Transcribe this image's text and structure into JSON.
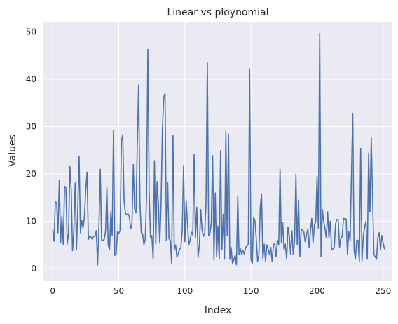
{
  "chart_data": {
    "type": "line",
    "title": "Linear vs ploynomial",
    "xlabel": "Index",
    "ylabel": "Values",
    "xlim": [
      -7,
      257
    ],
    "ylim": [
      -2.5,
      52
    ],
    "xticks": [
      0,
      50,
      100,
      150,
      200,
      250
    ],
    "yticks": [
      0,
      10,
      20,
      30,
      40,
      50
    ],
    "grid": true,
    "background_color": "#eaeaf2",
    "line_color": "#4c72b0",
    "series": [
      {
        "values": [
          8.1,
          5.8,
          14.1,
          14.0,
          7.6,
          18.7,
          5.6,
          11.1,
          5.1,
          17.4,
          17.2,
          5.2,
          7.5,
          21.7,
          16.7,
          3.8,
          7.9,
          18.1,
          4.1,
          13.0,
          23.8,
          7.6,
          10.2,
          8.6,
          10.9,
          16.7,
          20.4,
          6.2,
          6.9,
          6.6,
          6.2,
          6.9,
          6.8,
          8.0,
          0.8,
          9.0,
          21.0,
          6.0,
          6.0,
          6.2,
          8.0,
          17.2,
          5.0,
          4.0,
          12.0,
          7.0,
          29.2,
          2.8,
          3.1,
          7.8,
          7.5,
          8.0,
          27.0,
          28.3,
          14.4,
          11.7,
          11.4,
          11.6,
          11.0,
          8.4,
          9.4,
          22.0,
          12.6,
          11.8,
          26.0,
          38.8,
          14.0,
          7.6,
          7.4,
          5.0,
          6.2,
          15.0,
          46.3,
          16.0,
          6.5,
          7.0,
          2.0,
          22.8,
          5.2,
          18.4,
          13.5,
          5.4,
          13.8,
          29.3,
          36.2,
          37.0,
          6.0,
          18.3,
          6.3,
          6.0,
          1.0,
          28.1,
          4.0,
          5.0,
          2.4,
          3.2,
          4.1,
          4.5,
          8.0,
          21.8,
          5.7,
          14.4,
          9.5,
          5.0,
          6.1,
          7.7,
          7.1,
          24.1,
          6.6,
          13.0,
          2.4,
          5.0,
          12.5,
          8.2,
          6.8,
          7.5,
          14.0,
          43.6,
          7.0,
          7.5,
          9.7,
          23.9,
          1.8,
          16.0,
          2.5,
          9.0,
          2.0,
          24.9,
          4.0,
          11.5,
          2.0,
          29.0,
          7.0,
          28.4,
          2.0,
          4.5,
          1.2,
          1.8,
          2.8,
          0.8,
          15.2,
          3.0,
          4.2,
          3.0,
          3.8,
          3.0,
          4.5,
          4.8,
          5.2,
          42.2,
          2.0,
          1.0,
          10.9,
          10.2,
          6.4,
          1.5,
          3.0,
          12.9,
          15.8,
          2.0,
          5.2,
          1.6,
          5.0,
          4.2,
          3.0,
          4.5,
          1.5,
          5.0,
          5.4,
          2.5,
          6.0,
          5.0,
          21.0,
          5.5,
          9.8,
          4.0,
          5.2,
          2.0,
          8.8,
          7.0,
          3.0,
          8.0,
          3.0,
          6.0,
          20.0,
          5.0,
          14.5,
          2.5,
          8.2,
          8.2,
          7.8,
          5.7,
          7.0,
          8.4,
          4.5,
          8.0,
          10.6,
          5.5,
          9.4,
          9.8,
          19.5,
          8.6,
          49.7,
          2.5,
          12.5,
          10.0,
          8.5,
          6.5,
          12.0,
          6.5,
          10.0,
          4.0,
          4.2,
          4.4,
          9.5,
          10.4,
          10.4,
          4.5,
          6.5,
          6.8,
          10.6,
          10.5,
          10.5,
          3.0,
          7.9,
          6.0,
          19.4,
          32.8,
          4.0,
          2.0,
          6.0,
          6.0,
          1.5,
          25.4,
          1.6,
          7.0,
          8.8,
          10.0,
          2.0,
          24.4,
          12.0,
          27.7,
          15.3,
          3.0,
          2.5,
          2.0,
          6.6,
          7.6,
          4.0,
          7.0,
          5.4,
          4.2
        ]
      }
    ]
  }
}
